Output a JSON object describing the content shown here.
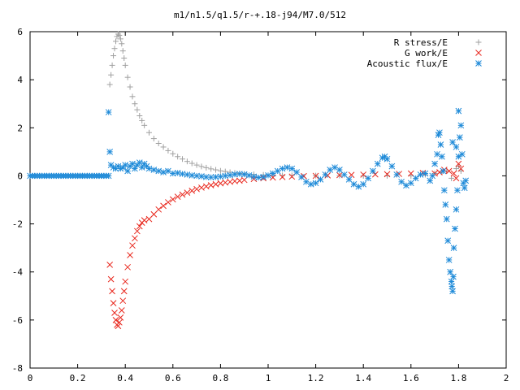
{
  "chart_data": {
    "type": "scatter",
    "title": "m1/n1.5/q1.5/r-+.18-j94/M7.0/512",
    "xlabel": "",
    "ylabel": "",
    "xlim": [
      0,
      2
    ],
    "ylim": [
      -8,
      6
    ],
    "x_ticks": [
      "0",
      "0.2",
      "0.4",
      "0.6",
      "0.8",
      "1",
      "1.2",
      "1.4",
      "1.6",
      "1.8",
      "2"
    ],
    "y_ticks": [
      "-8",
      "-6",
      "-4",
      "-2",
      "0",
      "2",
      "4",
      "6"
    ],
    "legend_position": "top-right",
    "grid": false,
    "series": [
      {
        "name": "R stress/E",
        "marker": "plus",
        "color": "#a0a0a0",
        "points": [
          [
            0.0,
            0.0
          ],
          [
            0.02,
            0.0
          ],
          [
            0.04,
            0.0
          ],
          [
            0.06,
            0.0
          ],
          [
            0.08,
            0.0
          ],
          [
            0.1,
            0.0
          ],
          [
            0.12,
            0.0
          ],
          [
            0.14,
            0.0
          ],
          [
            0.16,
            0.0
          ],
          [
            0.18,
            0.0
          ],
          [
            0.2,
            0.0
          ],
          [
            0.22,
            0.0
          ],
          [
            0.24,
            0.0
          ],
          [
            0.26,
            0.0
          ],
          [
            0.28,
            0.0
          ],
          [
            0.3,
            0.0
          ],
          [
            0.32,
            0.0
          ],
          [
            0.33,
            0.0
          ],
          [
            0.335,
            3.8
          ],
          [
            0.34,
            4.2
          ],
          [
            0.345,
            4.6
          ],
          [
            0.35,
            5.0
          ],
          [
            0.355,
            5.3
          ],
          [
            0.36,
            5.6
          ],
          [
            0.365,
            5.8
          ],
          [
            0.37,
            5.9
          ],
          [
            0.375,
            5.85
          ],
          [
            0.38,
            5.7
          ],
          [
            0.385,
            5.5
          ],
          [
            0.39,
            5.2
          ],
          [
            0.395,
            4.9
          ],
          [
            0.4,
            4.6
          ],
          [
            0.41,
            4.1
          ],
          [
            0.42,
            3.7
          ],
          [
            0.43,
            3.3
          ],
          [
            0.44,
            3.0
          ],
          [
            0.45,
            2.75
          ],
          [
            0.46,
            2.5
          ],
          [
            0.47,
            2.3
          ],
          [
            0.48,
            2.1
          ],
          [
            0.5,
            1.8
          ],
          [
            0.52,
            1.55
          ],
          [
            0.54,
            1.35
          ],
          [
            0.56,
            1.2
          ],
          [
            0.58,
            1.05
          ],
          [
            0.6,
            0.92
          ],
          [
            0.62,
            0.8
          ],
          [
            0.64,
            0.7
          ],
          [
            0.66,
            0.6
          ],
          [
            0.68,
            0.52
          ],
          [
            0.7,
            0.45
          ],
          [
            0.72,
            0.39
          ],
          [
            0.74,
            0.34
          ],
          [
            0.76,
            0.29
          ],
          [
            0.78,
            0.25
          ],
          [
            0.8,
            0.21
          ],
          [
            0.82,
            0.18
          ],
          [
            0.84,
            0.15
          ],
          [
            0.86,
            0.12
          ],
          [
            0.88,
            0.1
          ],
          [
            0.9,
            0.08
          ],
          [
            0.94,
            0.06
          ],
          [
            0.98,
            0.04
          ],
          [
            1.02,
            0.03
          ],
          [
            1.06,
            0.02
          ],
          [
            1.1,
            0.02
          ],
          [
            1.2,
            0.01
          ],
          [
            1.3,
            0.01
          ],
          [
            1.4,
            0.0
          ],
          [
            1.5,
            0.0
          ],
          [
            1.6,
            0.0
          ],
          [
            1.66,
            0.05
          ],
          [
            1.7,
            0.1
          ],
          [
            1.73,
            0.15
          ],
          [
            1.75,
            0.2
          ],
          [
            1.77,
            -0.1
          ],
          [
            1.79,
            0.3
          ],
          [
            1.8,
            0.4
          ],
          [
            1.81,
            0.2
          ]
        ]
      },
      {
        "name": "G work/E",
        "marker": "cross",
        "color": "#e8281e",
        "points": [
          [
            0.335,
            -3.7
          ],
          [
            0.34,
            -4.3
          ],
          [
            0.345,
            -4.8
          ],
          [
            0.35,
            -5.3
          ],
          [
            0.355,
            -5.7
          ],
          [
            0.36,
            -6.0
          ],
          [
            0.365,
            -6.2
          ],
          [
            0.37,
            -6.25
          ],
          [
            0.375,
            -6.1
          ],
          [
            0.38,
            -5.9
          ],
          [
            0.385,
            -5.6
          ],
          [
            0.39,
            -5.2
          ],
          [
            0.395,
            -4.8
          ],
          [
            0.4,
            -4.4
          ],
          [
            0.41,
            -3.8
          ],
          [
            0.42,
            -3.3
          ],
          [
            0.43,
            -2.9
          ],
          [
            0.44,
            -2.6
          ],
          [
            0.45,
            -2.3
          ],
          [
            0.46,
            -2.1
          ],
          [
            0.47,
            -1.95
          ],
          [
            0.48,
            -1.85
          ],
          [
            0.5,
            -1.8
          ],
          [
            0.52,
            -1.6
          ],
          [
            0.54,
            -1.4
          ],
          [
            0.56,
            -1.25
          ],
          [
            0.58,
            -1.1
          ],
          [
            0.6,
            -0.98
          ],
          [
            0.62,
            -0.87
          ],
          [
            0.64,
            -0.78
          ],
          [
            0.66,
            -0.7
          ],
          [
            0.68,
            -0.62
          ],
          [
            0.7,
            -0.55
          ],
          [
            0.72,
            -0.49
          ],
          [
            0.74,
            -0.44
          ],
          [
            0.76,
            -0.39
          ],
          [
            0.78,
            -0.35
          ],
          [
            0.8,
            -0.31
          ],
          [
            0.82,
            -0.28
          ],
          [
            0.84,
            -0.25
          ],
          [
            0.86,
            -0.22
          ],
          [
            0.88,
            -0.2
          ],
          [
            0.9,
            -0.17
          ],
          [
            0.94,
            -0.13
          ],
          [
            0.98,
            -0.1
          ],
          [
            1.02,
            -0.07
          ],
          [
            1.06,
            -0.05
          ],
          [
            1.1,
            -0.03
          ],
          [
            1.15,
            -0.01
          ],
          [
            1.2,
            0.0
          ],
          [
            1.25,
            0.02
          ],
          [
            1.3,
            0.03
          ],
          [
            1.35,
            0.04
          ],
          [
            1.4,
            0.05
          ],
          [
            1.45,
            0.06
          ],
          [
            1.5,
            0.07
          ],
          [
            1.55,
            0.08
          ],
          [
            1.6,
            0.1
          ],
          [
            1.65,
            0.12
          ],
          [
            1.7,
            0.1
          ],
          [
            1.72,
            0.15
          ],
          [
            1.74,
            0.25
          ],
          [
            1.76,
            0.2
          ],
          [
            1.78,
            0.1
          ],
          [
            1.79,
            -0.1
          ],
          [
            1.8,
            0.5
          ],
          [
            1.81,
            0.3
          ]
        ]
      },
      {
        "name": "Acoustic flux/E",
        "marker": "star",
        "color": "#1e8ad8",
        "points": [
          [
            0.0,
            0.0
          ],
          [
            0.01,
            0.0
          ],
          [
            0.02,
            0.0
          ],
          [
            0.03,
            0.0
          ],
          [
            0.04,
            0.0
          ],
          [
            0.05,
            0.0
          ],
          [
            0.06,
            0.0
          ],
          [
            0.07,
            0.0
          ],
          [
            0.08,
            0.0
          ],
          [
            0.09,
            0.0
          ],
          [
            0.1,
            0.0
          ],
          [
            0.11,
            0.0
          ],
          [
            0.12,
            0.0
          ],
          [
            0.13,
            0.0
          ],
          [
            0.14,
            0.0
          ],
          [
            0.15,
            0.0
          ],
          [
            0.16,
            0.0
          ],
          [
            0.17,
            0.0
          ],
          [
            0.18,
            0.0
          ],
          [
            0.19,
            0.0
          ],
          [
            0.2,
            0.0
          ],
          [
            0.21,
            0.0
          ],
          [
            0.22,
            0.0
          ],
          [
            0.23,
            0.0
          ],
          [
            0.24,
            0.0
          ],
          [
            0.25,
            0.0
          ],
          [
            0.26,
            0.0
          ],
          [
            0.27,
            0.0
          ],
          [
            0.28,
            0.0
          ],
          [
            0.29,
            0.0
          ],
          [
            0.3,
            0.0
          ],
          [
            0.31,
            0.0
          ],
          [
            0.32,
            0.0
          ],
          [
            0.33,
            0.0
          ],
          [
            0.33,
            2.65
          ],
          [
            0.335,
            1.0
          ],
          [
            0.34,
            0.45
          ],
          [
            0.35,
            0.35
          ],
          [
            0.36,
            0.3
          ],
          [
            0.37,
            0.4
          ],
          [
            0.38,
            0.3
          ],
          [
            0.39,
            0.35
          ],
          [
            0.4,
            0.45
          ],
          [
            0.41,
            0.2
          ],
          [
            0.42,
            0.4
          ],
          [
            0.43,
            0.5
          ],
          [
            0.44,
            0.3
          ],
          [
            0.45,
            0.45
          ],
          [
            0.46,
            0.55
          ],
          [
            0.47,
            0.35
          ],
          [
            0.48,
            0.5
          ],
          [
            0.49,
            0.4
          ],
          [
            0.5,
            0.3
          ],
          [
            0.52,
            0.25
          ],
          [
            0.54,
            0.2
          ],
          [
            0.56,
            0.15
          ],
          [
            0.58,
            0.2
          ],
          [
            0.6,
            0.1
          ],
          [
            0.62,
            0.12
          ],
          [
            0.64,
            0.08
          ],
          [
            0.66,
            0.05
          ],
          [
            0.68,
            0.02
          ],
          [
            0.7,
            0.0
          ],
          [
            0.72,
            -0.02
          ],
          [
            0.74,
            -0.05
          ],
          [
            0.76,
            -0.06
          ],
          [
            0.78,
            -0.05
          ],
          [
            0.8,
            -0.03
          ],
          [
            0.82,
            0.0
          ],
          [
            0.84,
            0.03
          ],
          [
            0.86,
            0.06
          ],
          [
            0.88,
            0.08
          ],
          [
            0.9,
            0.06
          ],
          [
            0.92,
            0.02
          ],
          [
            0.94,
            -0.03
          ],
          [
            0.96,
            -0.07
          ],
          [
            0.98,
            -0.05
          ],
          [
            1.0,
            0.02
          ],
          [
            1.02,
            0.1
          ],
          [
            1.04,
            0.2
          ],
          [
            1.06,
            0.3
          ],
          [
            1.08,
            0.35
          ],
          [
            1.1,
            0.3
          ],
          [
            1.12,
            0.15
          ],
          [
            1.14,
            -0.05
          ],
          [
            1.16,
            -0.25
          ],
          [
            1.18,
            -0.35
          ],
          [
            1.2,
            -0.3
          ],
          [
            1.22,
            -0.15
          ],
          [
            1.24,
            0.05
          ],
          [
            1.26,
            0.25
          ],
          [
            1.28,
            0.35
          ],
          [
            1.3,
            0.25
          ],
          [
            1.32,
            0.05
          ],
          [
            1.34,
            -0.15
          ],
          [
            1.36,
            -0.35
          ],
          [
            1.38,
            -0.45
          ],
          [
            1.4,
            -0.35
          ],
          [
            1.42,
            -0.1
          ],
          [
            1.44,
            0.2
          ],
          [
            1.46,
            0.5
          ],
          [
            1.48,
            0.75
          ],
          [
            1.49,
            0.8
          ],
          [
            1.5,
            0.7
          ],
          [
            1.52,
            0.4
          ],
          [
            1.54,
            0.05
          ],
          [
            1.56,
            -0.25
          ],
          [
            1.58,
            -0.4
          ],
          [
            1.6,
            -0.3
          ],
          [
            1.62,
            -0.1
          ],
          [
            1.64,
            0.05
          ],
          [
            1.66,
            0.1
          ],
          [
            1.68,
            -0.2
          ],
          [
            1.69,
            0.0
          ],
          [
            1.7,
            0.5
          ],
          [
            1.71,
            0.9
          ],
          [
            1.715,
            1.7
          ],
          [
            1.72,
            1.8
          ],
          [
            1.725,
            1.3
          ],
          [
            1.73,
            0.8
          ],
          [
            1.735,
            0.2
          ],
          [
            1.74,
            -0.6
          ],
          [
            1.745,
            -1.2
          ],
          [
            1.75,
            -1.8
          ],
          [
            1.755,
            -2.7
          ],
          [
            1.76,
            -3.5
          ],
          [
            1.765,
            -4.0
          ],
          [
            1.77,
            -4.4
          ],
          [
            1.772,
            -4.6
          ],
          [
            1.775,
            -4.8
          ],
          [
            1.778,
            -4.2
          ],
          [
            1.78,
            -3.0
          ],
          [
            1.785,
            -2.2
          ],
          [
            1.79,
            -1.4
          ],
          [
            1.795,
            -0.6
          ],
          [
            1.8,
            0.8
          ],
          [
            1.805,
            1.6
          ],
          [
            1.81,
            2.1
          ],
          [
            1.815,
            0.9
          ],
          [
            1.82,
            -0.3
          ],
          [
            1.825,
            -0.5
          ],
          [
            1.83,
            -0.2
          ],
          [
            1.775,
            1.4
          ],
          [
            1.79,
            1.2
          ],
          [
            1.8,
            2.7
          ]
        ]
      }
    ]
  }
}
